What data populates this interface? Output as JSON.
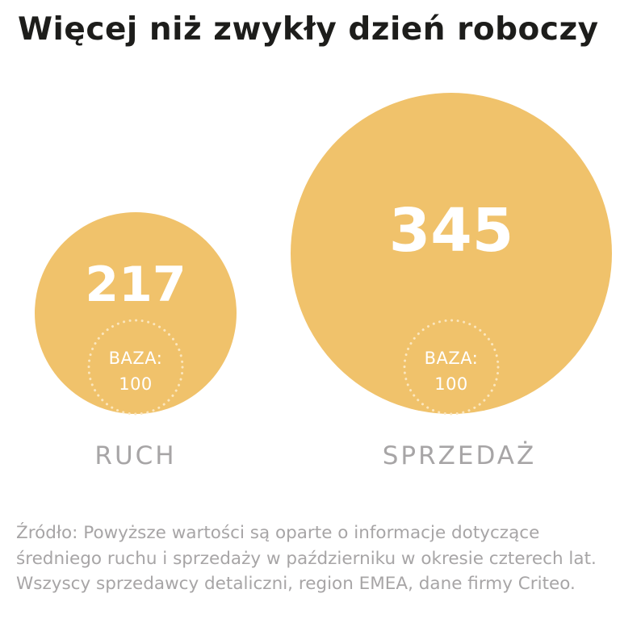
{
  "title": "Więcej niż zwykły dzień roboczy",
  "colors": {
    "bubble": "#f0c26b",
    "value_text": "#ffffff",
    "label_text": "#a7a5a6",
    "title_text": "#1d1d1b"
  },
  "chart_data": {
    "type": "bubble",
    "title": "Więcej niż zwykły dzień roboczy",
    "baseline": {
      "label": "BAZA:",
      "value": "100"
    },
    "categories": [
      "RUCH",
      "SPRZEDAŻ"
    ],
    "values": [
      217,
      345
    ],
    "value_labels": [
      "217",
      "345"
    ]
  },
  "source": "Źródło: Powyższe wartości są oparte o informacje dotyczące średniego ruchu i sprzedaży w październiku w okresie czterech lat. Wszyscy sprzedawcy detaliczni, region EMEA, dane firmy Criteo."
}
